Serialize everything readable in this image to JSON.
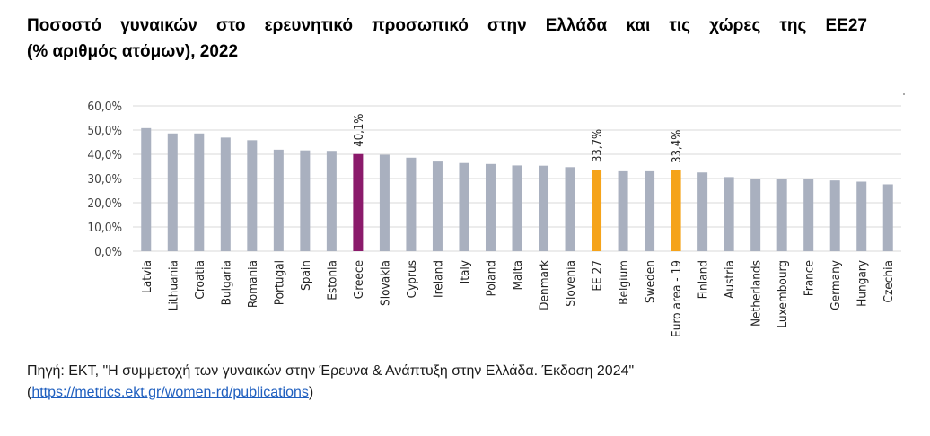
{
  "title": {
    "line1": "Ποσοστό γυναικών στο ερευνητικό προσωπικό στην Ελλάδα και τις χώρες της ΕΕ27",
    "line2": "(% αριθμός ατόμων), 2022"
  },
  "source": {
    "prefix": "Πηγή: ΕΚΤ, \"Η συμμετοχή των γυναικών στην Έρευνα & Ανάπτυξη στην Ελλάδα. Έκδοση 2024\"",
    "open_paren": "(",
    "link_text": "https://metrics.ekt.gr/women-rd/publications",
    "close_paren": ")"
  },
  "colors": {
    "default_bar": "#a9b0bf",
    "greece_bar": "#8b1a6b",
    "eu_bar": "#f5a31a",
    "grid": "#d9d9d9",
    "axis_text": "#404040"
  },
  "chart_data": {
    "type": "bar",
    "categories": [
      "Latvia",
      "Lithuania",
      "Croatia",
      "Bulgaria",
      "Romania",
      "Portugal",
      "Spain",
      "Estonia",
      "Greece",
      "Slovakia",
      "Cyprus",
      "Ireland",
      "Italy",
      "Poland",
      "Malta",
      "Denmark",
      "Slovenia",
      "EE 27",
      "Belgium",
      "Sweden",
      "Euro area - 19",
      "Finland",
      "Austria",
      "Netherlands",
      "Luxembourg",
      "France",
      "Germany",
      "Hungary",
      "Czechia"
    ],
    "values": [
      50.8,
      48.6,
      48.6,
      46.9,
      45.8,
      41.9,
      41.6,
      41.4,
      40.1,
      39.8,
      38.6,
      37.0,
      36.4,
      36.0,
      35.4,
      35.3,
      34.7,
      33.7,
      33.0,
      33.0,
      33.4,
      32.5,
      30.6,
      29.8,
      29.8,
      29.8,
      29.2,
      28.7,
      27.6
    ],
    "highlight": {
      "Greece": "greece",
      "EE 27": "eu",
      "Euro area - 19": "eu"
    },
    "data_labels": {
      "Greece": "40,1%",
      "EE 27": "33,7%",
      "Euro area - 19": "33,4%"
    },
    "y_ticks": [
      "0,0%",
      "10,0%",
      "20,0%",
      "30,0%",
      "40,0%",
      "50,0%",
      "60,0%"
    ],
    "y_tick_values": [
      0,
      10,
      20,
      30,
      40,
      50,
      60
    ],
    "ylim": [
      0,
      60
    ],
    "grid": true
  }
}
